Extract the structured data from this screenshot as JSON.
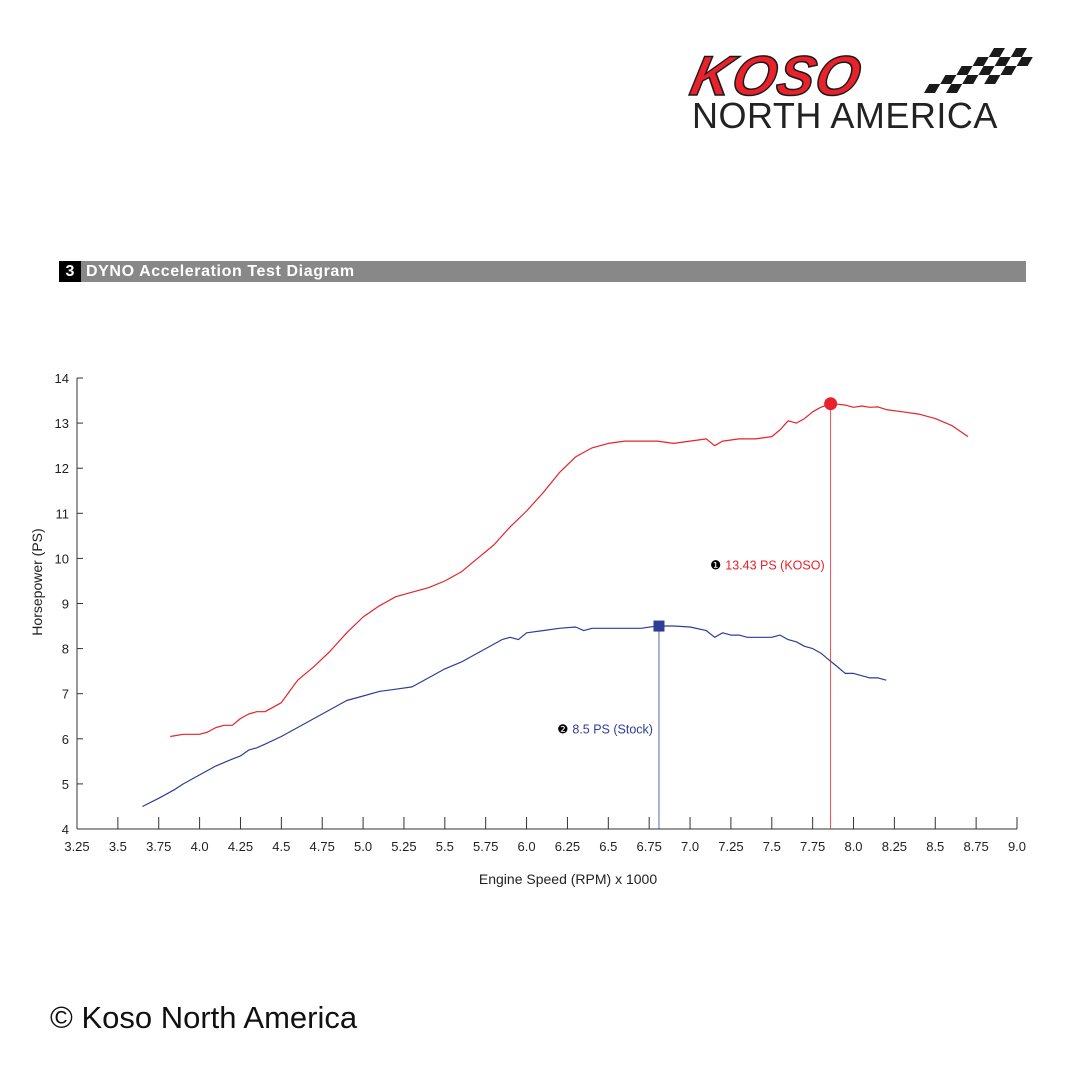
{
  "logo": {
    "brand": "KOSO",
    "subtitle": "NORTH AMERICA",
    "colors": {
      "brand_red": "#e8212b",
      "dark": "#1a1a1a"
    }
  },
  "section": {
    "number": "3",
    "title": "DYNO Acceleration Test Diagram",
    "bar_color": "#888888"
  },
  "copyright": "© Koso North America",
  "chart_data": {
    "type": "line",
    "title": "",
    "xlabel": "Engine Speed (RPM) x 1000",
    "ylabel": "Horsepower (PS)",
    "xlim": [
      3.25,
      9.0
    ],
    "ylim": [
      4,
      14
    ],
    "x_ticks": [
      "3.25",
      "3.5",
      "3.75",
      "4.0",
      "4.25",
      "4.5",
      "4.75",
      "5.0",
      "5.25",
      "5.5",
      "5.75",
      "6.0",
      "6.25",
      "6.5",
      "6.75",
      "7.0",
      "7.25",
      "7.5",
      "7.75",
      "8.0",
      "8.25",
      "8.5",
      "8.75",
      "9.0"
    ],
    "y_ticks": [
      "4",
      "5",
      "6",
      "7",
      "8",
      "9",
      "10",
      "11",
      "12",
      "13",
      "14"
    ],
    "grid": false,
    "series": [
      {
        "key": "koso",
        "color": "#e8212b",
        "x": [
          3.82,
          3.9,
          4.0,
          4.05,
          4.1,
          4.15,
          4.2,
          4.25,
          4.3,
          4.35,
          4.4,
          4.45,
          4.5,
          4.55,
          4.6,
          4.7,
          4.8,
          4.9,
          5.0,
          5.1,
          5.2,
          5.3,
          5.4,
          5.5,
          5.6,
          5.7,
          5.8,
          5.9,
          6.0,
          6.1,
          6.2,
          6.3,
          6.4,
          6.5,
          6.6,
          6.7,
          6.8,
          6.9,
          7.0,
          7.1,
          7.15,
          7.2,
          7.3,
          7.4,
          7.5,
          7.55,
          7.6,
          7.65,
          7.7,
          7.75,
          7.8,
          7.86,
          7.9,
          7.95,
          8.0,
          8.05,
          8.1,
          8.15,
          8.2,
          8.3,
          8.4,
          8.5,
          8.6,
          8.7
        ],
        "y": [
          6.05,
          6.1,
          6.1,
          6.15,
          6.25,
          6.3,
          6.3,
          6.45,
          6.55,
          6.6,
          6.6,
          6.7,
          6.8,
          7.05,
          7.3,
          7.6,
          7.95,
          8.35,
          8.7,
          8.95,
          9.15,
          9.25,
          9.35,
          9.5,
          9.7,
          10.0,
          10.3,
          10.7,
          11.05,
          11.45,
          11.9,
          12.25,
          12.45,
          12.55,
          12.6,
          12.6,
          12.6,
          12.55,
          12.6,
          12.65,
          12.5,
          12.6,
          12.65,
          12.65,
          12.7,
          12.85,
          13.05,
          13.0,
          13.1,
          13.25,
          13.35,
          13.43,
          13.42,
          13.4,
          13.35,
          13.38,
          13.35,
          13.36,
          13.3,
          13.25,
          13.2,
          13.1,
          12.95,
          12.7
        ],
        "marker": "circle",
        "peak": {
          "x": 7.86,
          "y": 13.43
        },
        "annotation": {
          "num": "❶",
          "text": "13.43 PS (KOSO)"
        }
      },
      {
        "key": "stock",
        "color": "#2e3d96",
        "x": [
          3.65,
          3.75,
          3.85,
          3.9,
          4.0,
          4.1,
          4.2,
          4.25,
          4.3,
          4.35,
          4.4,
          4.5,
          4.6,
          4.7,
          4.8,
          4.9,
          5.0,
          5.1,
          5.2,
          5.3,
          5.4,
          5.5,
          5.6,
          5.7,
          5.8,
          5.85,
          5.9,
          5.95,
          6.0,
          6.1,
          6.2,
          6.3,
          6.35,
          6.4,
          6.5,
          6.6,
          6.7,
          6.8,
          6.9,
          7.0,
          7.1,
          7.15,
          7.2,
          7.25,
          7.3,
          7.35,
          7.4,
          7.5,
          7.55,
          7.6,
          7.65,
          7.7,
          7.75,
          7.8,
          7.85,
          7.9,
          7.95,
          8.0,
          8.05,
          8.1,
          8.15,
          8.2
        ],
        "y": [
          4.5,
          4.68,
          4.88,
          5.0,
          5.2,
          5.4,
          5.55,
          5.62,
          5.75,
          5.8,
          5.88,
          6.05,
          6.25,
          6.45,
          6.65,
          6.85,
          6.95,
          7.05,
          7.1,
          7.15,
          7.35,
          7.55,
          7.7,
          7.9,
          8.1,
          8.2,
          8.25,
          8.2,
          8.35,
          8.4,
          8.45,
          8.48,
          8.4,
          8.45,
          8.45,
          8.45,
          8.45,
          8.5,
          8.5,
          8.48,
          8.4,
          8.25,
          8.35,
          8.3,
          8.3,
          8.25,
          8.25,
          8.25,
          8.3,
          8.2,
          8.15,
          8.05,
          8.0,
          7.9,
          7.75,
          7.6,
          7.45,
          7.45,
          7.4,
          7.35,
          7.35,
          7.3
        ],
        "marker": "square",
        "peak": {
          "x": 6.81,
          "y": 8.5
        },
        "annotation": {
          "num": "❷",
          "text": "8.5 PS (Stock)"
        }
      }
    ]
  }
}
